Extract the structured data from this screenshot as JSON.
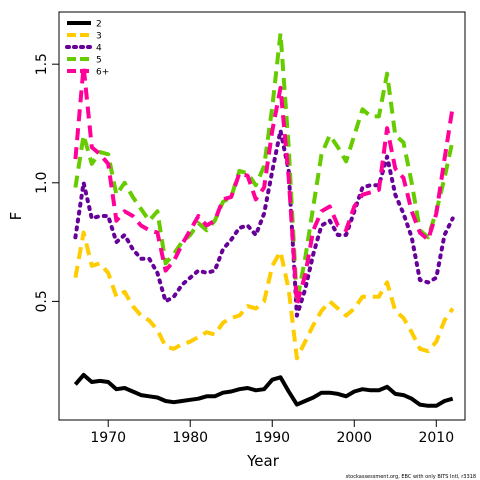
{
  "chart_data": {
    "type": "line",
    "xlabel": "Year",
    "ylabel": "F",
    "xlim": [
      1964,
      2013.5
    ],
    "ylim": [
      0.0,
      1.72
    ],
    "xticks": [
      1970,
      1980,
      1990,
      2000,
      2010
    ],
    "yticks": [
      0.5,
      1.0,
      1.5
    ],
    "ytick_labels": [
      "0.5",
      "1.0",
      "1.5"
    ],
    "legend_position": "top-left",
    "caption": "stockassessment.org, EBC with only BITS Intl, r3318",
    "x": [
      1966,
      1967,
      1968,
      1969,
      1970,
      1971,
      1972,
      1973,
      1974,
      1975,
      1976,
      1977,
      1978,
      1979,
      1980,
      1981,
      1982,
      1983,
      1984,
      1985,
      1986,
      1987,
      1988,
      1989,
      1990,
      1991,
      1992,
      1993,
      1994,
      1995,
      1996,
      1997,
      1998,
      1999,
      2000,
      2001,
      2002,
      2003,
      2004,
      2005,
      2006,
      2007,
      2008,
      2009,
      2010,
      2011,
      2012
    ],
    "series": [
      {
        "name": "2",
        "color": "#000000",
        "dash": "solid",
        "values": [
          0.15,
          0.19,
          0.16,
          0.165,
          0.16,
          0.13,
          0.135,
          0.12,
          0.105,
          0.1,
          0.095,
          0.08,
          0.075,
          0.08,
          0.085,
          0.09,
          0.1,
          0.1,
          0.115,
          0.12,
          0.13,
          0.135,
          0.125,
          0.13,
          0.17,
          0.18,
          0.12,
          0.065,
          0.08,
          0.095,
          0.115,
          0.115,
          0.11,
          0.1,
          0.12,
          0.13,
          0.125,
          0.125,
          0.14,
          0.11,
          0.105,
          0.09,
          0.065,
          0.06,
          0.06,
          0.08,
          0.09
        ]
      },
      {
        "name": "3",
        "color": "#ffcc00",
        "dash": "dashed",
        "values": [
          0.6,
          0.79,
          0.65,
          0.66,
          0.62,
          0.52,
          0.54,
          0.48,
          0.44,
          0.42,
          0.38,
          0.31,
          0.3,
          0.32,
          0.33,
          0.35,
          0.37,
          0.36,
          0.41,
          0.43,
          0.44,
          0.48,
          0.47,
          0.5,
          0.65,
          0.71,
          0.55,
          0.26,
          0.33,
          0.4,
          0.46,
          0.5,
          0.47,
          0.44,
          0.47,
          0.52,
          0.52,
          0.52,
          0.58,
          0.46,
          0.43,
          0.37,
          0.3,
          0.29,
          0.33,
          0.42,
          0.47
        ]
      },
      {
        "name": "4",
        "color": "#660099",
        "dash": "dotted",
        "values": [
          0.77,
          1.0,
          0.85,
          0.86,
          0.86,
          0.75,
          0.78,
          0.72,
          0.68,
          0.68,
          0.62,
          0.5,
          0.52,
          0.57,
          0.6,
          0.63,
          0.62,
          0.63,
          0.72,
          0.76,
          0.81,
          0.82,
          0.78,
          0.87,
          1.05,
          1.22,
          1.05,
          0.44,
          0.55,
          0.7,
          0.82,
          0.84,
          0.78,
          0.78,
          0.88,
          0.98,
          0.99,
          0.99,
          1.11,
          0.95,
          0.87,
          0.77,
          0.59,
          0.58,
          0.6,
          0.78,
          0.85
        ]
      },
      {
        "name": "5",
        "color": "#66cc00",
        "dash": "dashed",
        "values": [
          0.98,
          1.2,
          1.08,
          1.13,
          1.12,
          0.95,
          1.0,
          0.94,
          0.89,
          0.84,
          0.88,
          0.66,
          0.7,
          0.75,
          0.78,
          0.83,
          0.8,
          0.84,
          0.92,
          0.94,
          1.05,
          1.04,
          0.99,
          1.07,
          1.32,
          1.63,
          1.15,
          0.5,
          0.68,
          0.9,
          1.12,
          1.2,
          1.15,
          1.09,
          1.2,
          1.31,
          1.28,
          1.28,
          1.46,
          1.2,
          1.17,
          1.0,
          0.8,
          0.77,
          0.88,
          1.02,
          1.18
        ]
      },
      {
        "name": "6+",
        "color": "#ff0099",
        "dash": "dashed",
        "values": [
          1.1,
          1.49,
          1.15,
          1.12,
          1.08,
          0.84,
          0.88,
          0.86,
          0.82,
          0.8,
          0.79,
          0.63,
          0.67,
          0.74,
          0.8,
          0.86,
          0.82,
          0.84,
          0.93,
          0.94,
          1.04,
          1.03,
          0.93,
          0.98,
          1.22,
          1.4,
          1.02,
          0.49,
          0.61,
          0.8,
          0.88,
          0.9,
          0.82,
          0.8,
          0.9,
          0.95,
          0.96,
          0.97,
          1.23,
          1.06,
          1.02,
          0.88,
          0.79,
          0.76,
          0.87,
          1.1,
          1.32
        ]
      }
    ]
  }
}
